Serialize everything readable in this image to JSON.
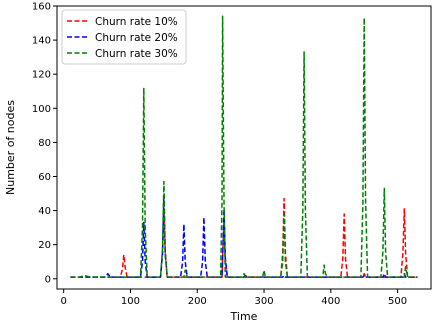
{
  "chart_data": {
    "type": "line",
    "title": "",
    "xlabel": "Time",
    "ylabel": "Number of nodes",
    "xlim": [
      -10,
      550
    ],
    "ylim": [
      -6,
      160
    ],
    "xticks": [
      0,
      100,
      200,
      300,
      400,
      500
    ],
    "yticks": [
      0,
      20,
      40,
      60,
      80,
      100,
      120,
      140,
      160
    ],
    "grid": false,
    "legend_position": "top-left",
    "line_style": "dashed",
    "x": [
      10,
      20,
      25,
      30,
      40,
      50,
      60,
      63,
      66,
      70,
      80,
      85,
      88,
      90,
      92,
      95,
      100,
      110,
      115,
      118,
      120,
      122,
      125,
      130,
      140,
      145,
      148,
      150,
      152,
      155,
      160,
      170,
      175,
      178,
      180,
      182,
      185,
      190,
      200,
      205,
      208,
      210,
      212,
      215,
      220,
      230,
      235,
      237,
      238,
      240,
      242,
      245,
      250,
      260,
      265,
      268,
      270,
      272,
      275,
      280,
      290,
      295,
      298,
      300,
      302,
      305,
      310,
      320,
      325,
      328,
      330,
      332,
      335,
      340,
      350,
      355,
      358,
      360,
      362,
      365,
      370,
      380,
      385,
      388,
      390,
      392,
      395,
      400,
      410,
      415,
      418,
      420,
      422,
      425,
      430,
      440,
      445,
      448,
      450,
      452,
      455,
      460,
      470,
      475,
      478,
      480,
      482,
      485,
      490,
      500,
      505,
      508,
      510,
      512,
      515,
      520,
      525,
      530
    ],
    "series": [
      {
        "name": "Churn rate 10%",
        "color": "#ff0000",
        "values": [
          1,
          1,
          1,
          1,
          1,
          1,
          1,
          1,
          1,
          1,
          1,
          1,
          6,
          14,
          7,
          1,
          1,
          1,
          1,
          1,
          1,
          1,
          1,
          1,
          1,
          1,
          15,
          40,
          15,
          1,
          1,
          1,
          1,
          1,
          1,
          1,
          1,
          1,
          1,
          1,
          1,
          1,
          1,
          1,
          1,
          1,
          1,
          1,
          12,
          35,
          12,
          1,
          1,
          1,
          1,
          1,
          1,
          1,
          1,
          1,
          1,
          1,
          1,
          1,
          1,
          1,
          1,
          1,
          1,
          15,
          47,
          15,
          1,
          1,
          1,
          1,
          1,
          1,
          1,
          1,
          1,
          1,
          1,
          1,
          1,
          1,
          1,
          1,
          1,
          1,
          12,
          38,
          12,
          1,
          1,
          1,
          1,
          1,
          3,
          1,
          1,
          1,
          1,
          1,
          1,
          1,
          1,
          1,
          1,
          1,
          1,
          15,
          41,
          15,
          1,
          1,
          1,
          1
        ]
      },
      {
        "name": "Churn rate 20%",
        "color": "#0000ff",
        "values": [
          1,
          1,
          1,
          1,
          1,
          1,
          1,
          1,
          3,
          1,
          1,
          1,
          1,
          1,
          1,
          1,
          1,
          1,
          1,
          10,
          33,
          10,
          1,
          1,
          1,
          1,
          15,
          49,
          15,
          1,
          1,
          1,
          1,
          10,
          32,
          10,
          1,
          1,
          1,
          1,
          10,
          36,
          10,
          1,
          1,
          1,
          1,
          1,
          12,
          41,
          12,
          1,
          1,
          1,
          1,
          1,
          1,
          2,
          1,
          1,
          1,
          1,
          1,
          1,
          1,
          1,
          1,
          1,
          1,
          1,
          2,
          1,
          1,
          1,
          1,
          1,
          1,
          1,
          1,
          1,
          1,
          1,
          1,
          1,
          1,
          1,
          1,
          1,
          1,
          1,
          1,
          1,
          1,
          1,
          1,
          1,
          1,
          1,
          2,
          1,
          1,
          1,
          1,
          1,
          1,
          3,
          1,
          1,
          1,
          1,
          1,
          1,
          3,
          1,
          1,
          1,
          1,
          1
        ]
      },
      {
        "name": "Churn rate 30%",
        "color": "#008000",
        "values": [
          1,
          1,
          1,
          2,
          1,
          1,
          1,
          1,
          1,
          1,
          1,
          1,
          1,
          1,
          1,
          1,
          1,
          1,
          1,
          30,
          112,
          30,
          1,
          1,
          1,
          1,
          17,
          57,
          17,
          1,
          1,
          1,
          1,
          1,
          1,
          5,
          1,
          1,
          1,
          1,
          1,
          1,
          1,
          1,
          1,
          1,
          1,
          45,
          154,
          45,
          1,
          1,
          1,
          1,
          1,
          1,
          3,
          1,
          1,
          1,
          1,
          1,
          1,
          5,
          1,
          1,
          1,
          1,
          1,
          10,
          38,
          10,
          1,
          1,
          1,
          1,
          40,
          133,
          40,
          1,
          1,
          1,
          1,
          1,
          8,
          3,
          1,
          1,
          1,
          1,
          1,
          1,
          1,
          1,
          1,
          1,
          1,
          45,
          153,
          45,
          1,
          1,
          1,
          1,
          16,
          53,
          16,
          1,
          1,
          1,
          1,
          1,
          1,
          7,
          1,
          1,
          1,
          1
        ]
      }
    ]
  }
}
